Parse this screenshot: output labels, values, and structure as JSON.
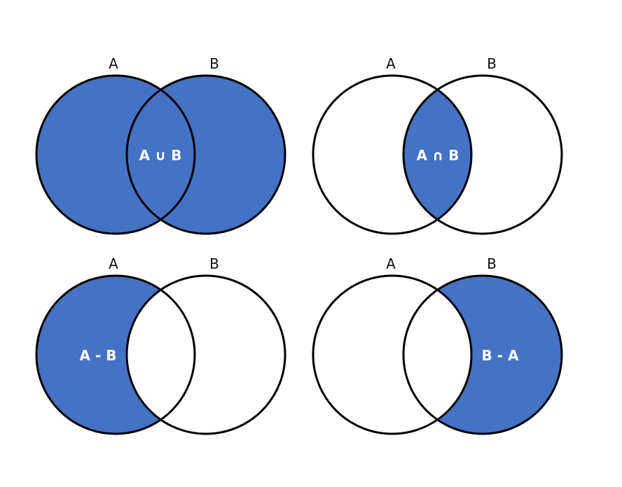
{
  "colors": {
    "fill": "#4472C4",
    "stroke": "#000000",
    "background": "#ffffff"
  },
  "diagrams": [
    {
      "operation": "union",
      "set_a_label": "A",
      "set_b_label": "B",
      "result_label": "A ∪ B"
    },
    {
      "operation": "intersection",
      "set_a_label": "A",
      "set_b_label": "B",
      "result_label": "A ∩ B"
    },
    {
      "operation": "difference-a-b",
      "set_a_label": "A",
      "set_b_label": "B",
      "result_label": "A - B"
    },
    {
      "operation": "difference-b-a",
      "set_a_label": "A",
      "set_b_label": "B",
      "result_label": "B - A"
    }
  ]
}
